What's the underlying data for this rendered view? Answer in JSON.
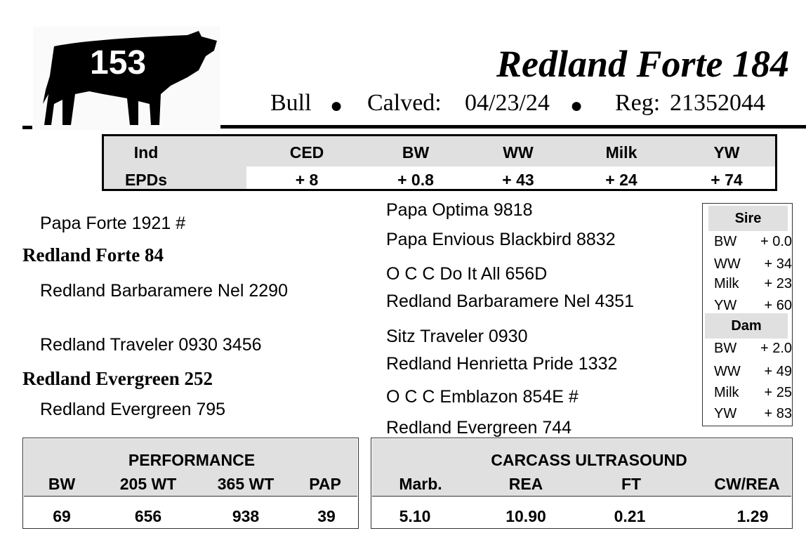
{
  "lot_number": "153",
  "title": "Redland Forte 184",
  "info": {
    "sex": "Bull",
    "calved_label": "Calved:",
    "calved": "04/23/24",
    "reg_label": "Reg:",
    "reg": "21352044"
  },
  "epd": {
    "row_labels": [
      "Ind",
      "EPDs"
    ],
    "columns": [
      "CED",
      "BW",
      "WW",
      "Milk",
      "YW"
    ],
    "values": [
      "+ 8",
      "+ 0.8",
      "+ 43",
      "+ 24",
      "+ 74"
    ]
  },
  "pedigree": {
    "sire_sire": "Papa Forte 1921 #",
    "sire": "Redland Forte 84",
    "sire_dam": "Redland Barbaramere Nel 2290",
    "dam_sire": "Redland Traveler 0930 3456",
    "dam": "Redland Evergreen 252",
    "dam_dam": "Redland Evergreen 795",
    "third_gen": [
      "Papa Optima 9818",
      "Papa Envious Blackbird 8832",
      "O C C Do It All 656D",
      "Redland Barbaramere Nel 4351",
      "Sitz Traveler 0930",
      "Redland Henrietta Pride 1332",
      "O C C Emblazon 854E #",
      "Redland Evergreen 744"
    ]
  },
  "sire_epds": {
    "label": "Sire",
    "rows": [
      [
        "BW",
        "+ 0.0"
      ],
      [
        "WW",
        "+ 34"
      ],
      [
        "Milk",
        "+ 23"
      ],
      [
        "YW",
        "+ 60"
      ]
    ]
  },
  "dam_epds": {
    "label": "Dam",
    "rows": [
      [
        "BW",
        "+ 2.0"
      ],
      [
        "WW",
        "+ 49"
      ],
      [
        "Milk",
        "+ 25"
      ],
      [
        "YW",
        "+ 83"
      ]
    ]
  },
  "performance": {
    "title": "PERFORMANCE",
    "columns": [
      "BW",
      "205 WT",
      "365 WT",
      "PAP"
    ],
    "values": [
      "69",
      "656",
      "938",
      "39"
    ]
  },
  "carcass": {
    "title": "CARCASS ULTRASOUND",
    "columns": [
      "Marb.",
      "REA",
      "FT",
      "CW/REA"
    ],
    "values": [
      "5.10",
      "10.90",
      "0.21",
      "1.29"
    ]
  }
}
